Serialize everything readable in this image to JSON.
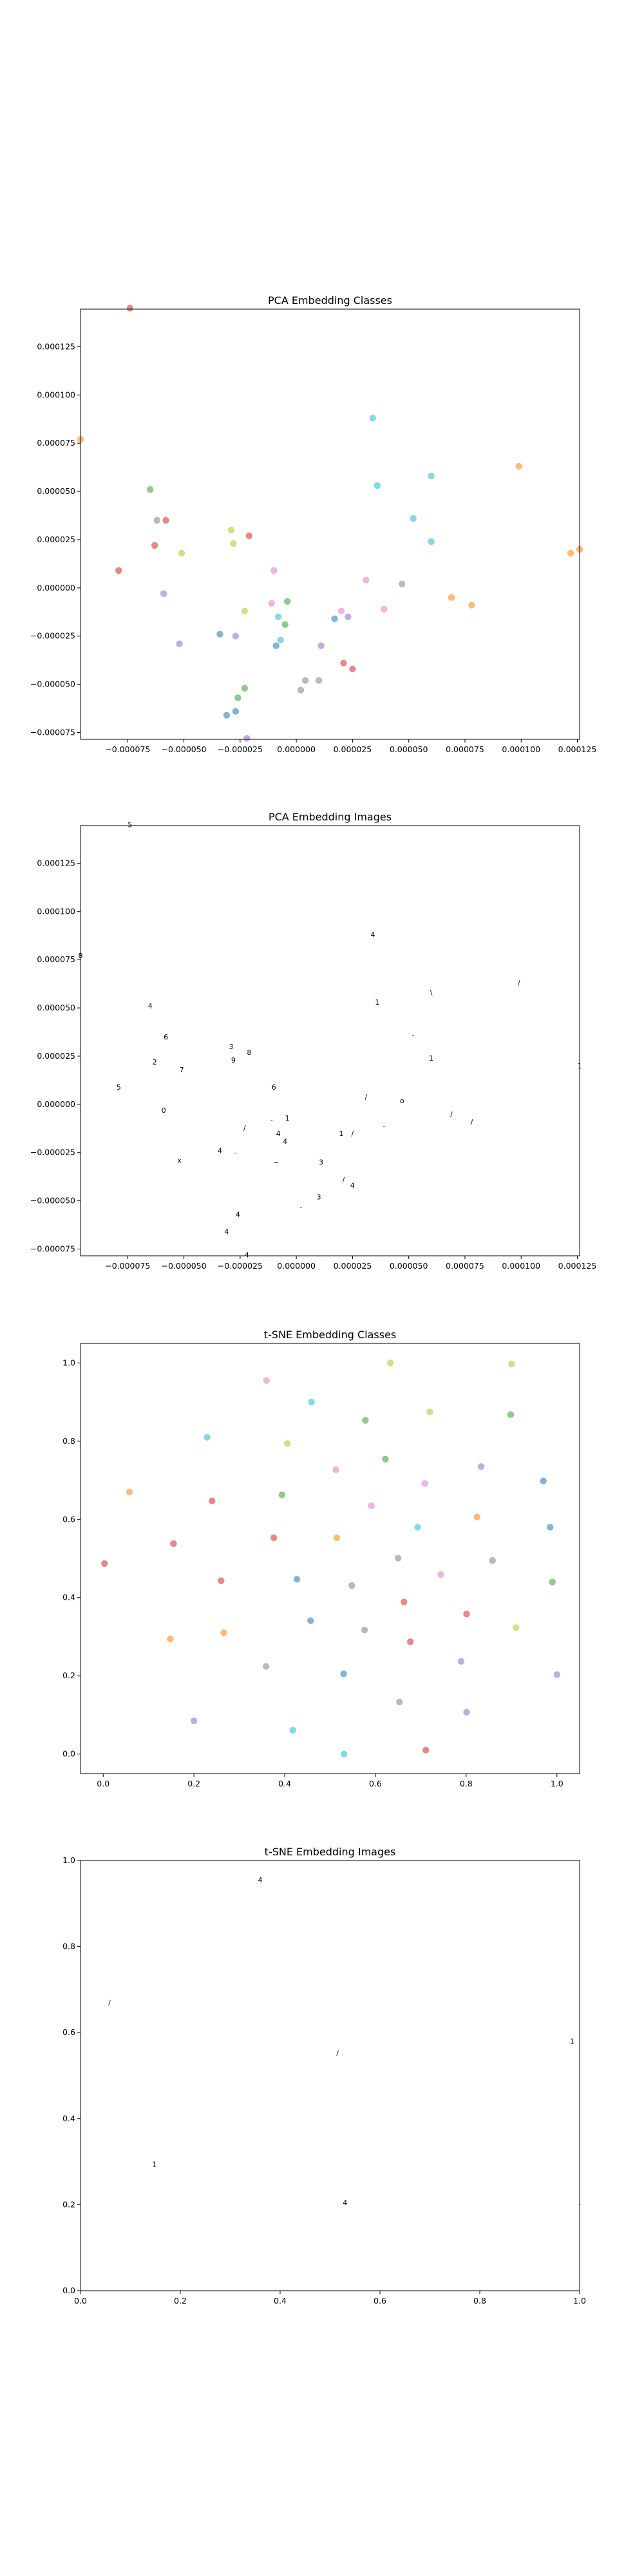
{
  "figure": {
    "panels": [
      {
        "title": "PCA Embedding Classes"
      },
      {
        "title": "PCA Embedding Images"
      },
      {
        "title": "t-SNE Embedding Classes"
      },
      {
        "title": "t-SNE Embedding Images"
      }
    ]
  },
  "chart_data": [
    {
      "type": "scatter",
      "title": "PCA Embedding Classes",
      "xlabel": "",
      "ylabel": "",
      "xlim": [
        -9.6e-05,
        0.000126
      ],
      "ylim": [
        -7.85e-05,
        0.0001445
      ],
      "xticks": [
        -7.5e-05,
        -5e-05,
        -2.5e-05,
        0.0,
        2.5e-05,
        5e-05,
        7.5e-05,
        0.0001,
        0.000125
      ],
      "xticklabels": [
        "−0.000075",
        "−0.000050",
        "−0.000025",
        "0.000000",
        "0.000025",
        "0.000050",
        "0.000075",
        "0.000100",
        "0.000125"
      ],
      "yticks": [
        -7.5e-05,
        -5e-05,
        -2.5e-05,
        0.0,
        2.5e-05,
        5e-05,
        7.5e-05,
        0.0001,
        0.000125
      ],
      "yticklabels": [
        "−0.000075",
        "−0.000050",
        "−0.000025",
        "0.000000",
        "0.000025",
        "0.000050",
        "0.000075",
        "0.000100",
        "0.000125"
      ],
      "grid": false,
      "points": [
        {
          "x": -7.4e-05,
          "y": 0.000145,
          "color": "#d62728"
        },
        {
          "x": -9.6e-05,
          "y": 7.7e-05,
          "color": "#ff7f0e"
        },
        {
          "x": 3.4e-05,
          "y": 8.8e-05,
          "color": "#17becf"
        },
        {
          "x": 3.6e-05,
          "y": 5.3e-05,
          "color": "#17becf"
        },
        {
          "x": 6e-05,
          "y": 5.8e-05,
          "color": "#17becf"
        },
        {
          "x": 9.9e-05,
          "y": 6.3e-05,
          "color": "#ff7f0e"
        },
        {
          "x": -6.5e-05,
          "y": 5.1e-05,
          "color": "#2ca02c"
        },
        {
          "x": -6.2e-05,
          "y": 3.5e-05,
          "color": "#7f7f7f"
        },
        {
          "x": -5.8e-05,
          "y": 3.5e-05,
          "color": "#d62728"
        },
        {
          "x": -6.3e-05,
          "y": 2.2e-05,
          "color": "#d62728"
        },
        {
          "x": -5.1e-05,
          "y": 1.8e-05,
          "color": "#bcbd22"
        },
        {
          "x": -2.9e-05,
          "y": 3e-05,
          "color": "#bcbd22"
        },
        {
          "x": -2.8e-05,
          "y": 2.3e-05,
          "color": "#bcbd22"
        },
        {
          "x": -2.1e-05,
          "y": 2.7e-05,
          "color": "#d62728"
        },
        {
          "x": 5.2e-05,
          "y": 3.6e-05,
          "color": "#17becf"
        },
        {
          "x": 6e-05,
          "y": 2.4e-05,
          "color": "#17becf"
        },
        {
          "x": 0.000122,
          "y": 1.8e-05,
          "color": "#ff7f0e"
        },
        {
          "x": 0.000126,
          "y": 2e-05,
          "color": "#ff7f0e"
        },
        {
          "x": -7.9e-05,
          "y": 9e-06,
          "color": "#d62728"
        },
        {
          "x": -1e-05,
          "y": 9e-06,
          "color": "#e377c2"
        },
        {
          "x": 3.1e-05,
          "y": 4e-06,
          "color": "#e377c2"
        },
        {
          "x": 4.7e-05,
          "y": 2e-06,
          "color": "#7f7f7f"
        },
        {
          "x": -5.9e-05,
          "y": -3e-06,
          "color": "#9467bd"
        },
        {
          "x": 6.9e-05,
          "y": -5e-06,
          "color": "#ff7f0e"
        },
        {
          "x": 7.8e-05,
          "y": -9e-06,
          "color": "#ff7f0e"
        },
        {
          "x": -2.3e-05,
          "y": -1.2e-05,
          "color": "#bcbd22"
        },
        {
          "x": -1.1e-05,
          "y": -8e-06,
          "color": "#e377c2"
        },
        {
          "x": -4e-06,
          "y": -7e-06,
          "color": "#2ca02c"
        },
        {
          "x": -8e-06,
          "y": -1.5e-05,
          "color": "#17becf"
        },
        {
          "x": -5e-06,
          "y": -1.9e-05,
          "color": "#2ca02c"
        },
        {
          "x": 2e-05,
          "y": -1.2e-05,
          "color": "#e377c2"
        },
        {
          "x": 2.3e-05,
          "y": -1.5e-05,
          "color": "#9467bd"
        },
        {
          "x": 1.7e-05,
          "y": -1.6e-05,
          "color": "#1f77b4"
        },
        {
          "x": 3.9e-05,
          "y": -1.1e-05,
          "color": "#e377c2"
        },
        {
          "x": -3.4e-05,
          "y": -2.4e-05,
          "color": "#1f77b4"
        },
        {
          "x": -2.7e-05,
          "y": -2.5e-05,
          "color": "#9467bd"
        },
        {
          "x": -9e-06,
          "y": -3e-05,
          "color": "#1f77b4"
        },
        {
          "x": -7e-06,
          "y": -2.7e-05,
          "color": "#17becf"
        },
        {
          "x": 1.1e-05,
          "y": -3e-05,
          "color": "#9467bd"
        },
        {
          "x": -5.2e-05,
          "y": -2.9e-05,
          "color": "#9467bd"
        },
        {
          "x": 2.1e-05,
          "y": -3.9e-05,
          "color": "#d62728"
        },
        {
          "x": 2.5e-05,
          "y": -4.2e-05,
          "color": "#d62728"
        },
        {
          "x": 4e-06,
          "y": -4.8e-05,
          "color": "#7f7f7f"
        },
        {
          "x": 1e-05,
          "y": -4.8e-05,
          "color": "#7f7f7f"
        },
        {
          "x": 2e-06,
          "y": -5.3e-05,
          "color": "#7f7f7f"
        },
        {
          "x": -2.3e-05,
          "y": -5.2e-05,
          "color": "#2ca02c"
        },
        {
          "x": -2.6e-05,
          "y": -5.7e-05,
          "color": "#2ca02c"
        },
        {
          "x": -2.7e-05,
          "y": -6.4e-05,
          "color": "#1f77b4"
        },
        {
          "x": -3.1e-05,
          "y": -6.6e-05,
          "color": "#1f77b4"
        },
        {
          "x": -2.2e-05,
          "y": -7.8e-05,
          "color": "#9467bd"
        }
      ]
    },
    {
      "type": "scatter",
      "title": "PCA Embedding Images",
      "xlabel": "",
      "ylabel": "",
      "xlim": [
        -9.6e-05,
        0.000126
      ],
      "ylim": [
        -7.85e-05,
        0.0001445
      ],
      "xticks": [
        -7.5e-05,
        -5e-05,
        -2.5e-05,
        0.0,
        2.5e-05,
        5e-05,
        7.5e-05,
        0.0001,
        0.000125
      ],
      "xticklabels": [
        "−0.000075",
        "−0.000050",
        "−0.000025",
        "0.000000",
        "0.000025",
        "0.000050",
        "0.000075",
        "0.000100",
        "0.000125"
      ],
      "yticks": [
        -7.5e-05,
        -5e-05,
        -2.5e-05,
        0.0,
        2.5e-05,
        5e-05,
        7.5e-05,
        0.0001,
        0.000125
      ],
      "yticklabels": [
        "−0.000075",
        "−0.000050",
        "−0.000025",
        "0.000000",
        "0.000025",
        "0.000050",
        "0.000075",
        "0.000100",
        "0.000125"
      ],
      "grid": false,
      "marker": "image",
      "points": [
        {
          "x": -7.4e-05,
          "y": 0.000145,
          "glyph": "5"
        },
        {
          "x": -9.6e-05,
          "y": 7.7e-05,
          "glyph": "8"
        },
        {
          "x": 3.4e-05,
          "y": 8.8e-05,
          "glyph": "4"
        },
        {
          "x": 3.6e-05,
          "y": 5.3e-05,
          "glyph": "1"
        },
        {
          "x": 6e-05,
          "y": 5.8e-05,
          "glyph": "\\"
        },
        {
          "x": 9.9e-05,
          "y": 6.3e-05,
          "glyph": "/"
        },
        {
          "x": -6.5e-05,
          "y": 5.1e-05,
          "glyph": "4"
        },
        {
          "x": -5.8e-05,
          "y": 3.5e-05,
          "glyph": "6"
        },
        {
          "x": -6.3e-05,
          "y": 2.2e-05,
          "glyph": "2"
        },
        {
          "x": -5.1e-05,
          "y": 1.8e-05,
          "glyph": "7"
        },
        {
          "x": -2.9e-05,
          "y": 3e-05,
          "glyph": "3"
        },
        {
          "x": -2.8e-05,
          "y": 2.3e-05,
          "glyph": "9"
        },
        {
          "x": -2.1e-05,
          "y": 2.7e-05,
          "glyph": "8"
        },
        {
          "x": 5.2e-05,
          "y": 3.6e-05,
          "glyph": "-"
        },
        {
          "x": 6e-05,
          "y": 2.4e-05,
          "glyph": "1"
        },
        {
          "x": 0.000126,
          "y": 2e-05,
          "glyph": "1"
        },
        {
          "x": -7.9e-05,
          "y": 9e-06,
          "glyph": "5"
        },
        {
          "x": -1e-05,
          "y": 9e-06,
          "glyph": "6"
        },
        {
          "x": 3.1e-05,
          "y": 4e-06,
          "glyph": "/"
        },
        {
          "x": 4.7e-05,
          "y": 2e-06,
          "glyph": "o"
        },
        {
          "x": -5.9e-05,
          "y": -3e-06,
          "glyph": "0"
        },
        {
          "x": 6.9e-05,
          "y": -5e-06,
          "glyph": "/"
        },
        {
          "x": 7.8e-05,
          "y": -9e-06,
          "glyph": "/"
        },
        {
          "x": -2.3e-05,
          "y": -1.2e-05,
          "glyph": "/"
        },
        {
          "x": -1.1e-05,
          "y": -8e-06,
          "glyph": "-"
        },
        {
          "x": -4e-06,
          "y": -7e-06,
          "glyph": "1"
        },
        {
          "x": -8e-06,
          "y": -1.5e-05,
          "glyph": "4"
        },
        {
          "x": -5e-06,
          "y": -1.9e-05,
          "glyph": "4"
        },
        {
          "x": 2e-05,
          "y": -1.5e-05,
          "glyph": "1"
        },
        {
          "x": 2.5e-05,
          "y": -1.5e-05,
          "glyph": "/"
        },
        {
          "x": 3.9e-05,
          "y": -1.1e-05,
          "glyph": "-"
        },
        {
          "x": -3.4e-05,
          "y": -2.4e-05,
          "glyph": "4"
        },
        {
          "x": -2.7e-05,
          "y": -2.5e-05,
          "glyph": "-"
        },
        {
          "x": -9e-06,
          "y": -3e-05,
          "glyph": "~"
        },
        {
          "x": 1.1e-05,
          "y": -3e-05,
          "glyph": "3"
        },
        {
          "x": -5.2e-05,
          "y": -2.9e-05,
          "glyph": "x"
        },
        {
          "x": 2.1e-05,
          "y": -3.9e-05,
          "glyph": "/"
        },
        {
          "x": 2.5e-05,
          "y": -4.2e-05,
          "glyph": "4"
        },
        {
          "x": 1e-05,
          "y": -4.8e-05,
          "glyph": "3"
        },
        {
          "x": 2e-06,
          "y": -5.3e-05,
          "glyph": "-"
        },
        {
          "x": -2.6e-05,
          "y": -5.7e-05,
          "glyph": "4"
        },
        {
          "x": -3.1e-05,
          "y": -6.6e-05,
          "glyph": "4"
        },
        {
          "x": -2.2e-05,
          "y": -7.8e-05,
          "glyph": "4"
        }
      ]
    },
    {
      "type": "scatter",
      "title": "t-SNE Embedding Classes",
      "xlabel": "",
      "ylabel": "",
      "xlim": [
        -0.05,
        1.05
      ],
      "ylim": [
        -0.05,
        1.05
      ],
      "xticks": [
        0.0,
        0.2,
        0.4,
        0.6,
        0.8,
        1.0
      ],
      "xticklabels": [
        "0.0",
        "0.2",
        "0.4",
        "0.6",
        "0.8",
        "1.0"
      ],
      "yticks": [
        0.0,
        0.2,
        0.4,
        0.6,
        0.8,
        1.0
      ],
      "yticklabels": [
        "0.0",
        "0.2",
        "0.4",
        "0.6",
        "0.8",
        "1.0"
      ],
      "grid": false,
      "points": [
        {
          "x": 0.633,
          "y": 1.0,
          "color": "#bcbd22"
        },
        {
          "x": 0.9,
          "y": 0.997,
          "color": "#bcbd22"
        },
        {
          "x": 0.36,
          "y": 0.955,
          "color": "#e377c2"
        },
        {
          "x": 0.459,
          "y": 0.9,
          "color": "#17becf"
        },
        {
          "x": 0.578,
          "y": 0.853,
          "color": "#2ca02c"
        },
        {
          "x": 0.72,
          "y": 0.875,
          "color": "#bcbd22"
        },
        {
          "x": 0.898,
          "y": 0.868,
          "color": "#2ca02c"
        },
        {
          "x": 0.229,
          "y": 0.81,
          "color": "#17becf"
        },
        {
          "x": 0.406,
          "y": 0.794,
          "color": "#bcbd22"
        },
        {
          "x": 0.622,
          "y": 0.754,
          "color": "#2ca02c"
        },
        {
          "x": 0.833,
          "y": 0.735,
          "color": "#9467bd"
        },
        {
          "x": 0.513,
          "y": 0.727,
          "color": "#e377c2"
        },
        {
          "x": 0.97,
          "y": 0.698,
          "color": "#1f77b4"
        },
        {
          "x": 0.709,
          "y": 0.692,
          "color": "#e377c2"
        },
        {
          "x": 0.058,
          "y": 0.67,
          "color": "#ff7f0e"
        },
        {
          "x": 0.394,
          "y": 0.663,
          "color": "#2ca02c"
        },
        {
          "x": 0.24,
          "y": 0.647,
          "color": "#d62728"
        },
        {
          "x": 0.591,
          "y": 0.635,
          "color": "#e377c2"
        },
        {
          "x": 0.824,
          "y": 0.606,
          "color": "#ff7f0e"
        },
        {
          "x": 0.693,
          "y": 0.58,
          "color": "#17becf"
        },
        {
          "x": 0.985,
          "y": 0.58,
          "color": "#1f77b4"
        },
        {
          "x": 0.376,
          "y": 0.553,
          "color": "#d62728"
        },
        {
          "x": 0.515,
          "y": 0.553,
          "color": "#ff7f0e"
        },
        {
          "x": 0.155,
          "y": 0.538,
          "color": "#d62728"
        },
        {
          "x": 0.65,
          "y": 0.501,
          "color": "#7f7f7f"
        },
        {
          "x": 0.858,
          "y": 0.495,
          "color": "#7f7f7f"
        },
        {
          "x": 0.003,
          "y": 0.487,
          "color": "#d62728"
        },
        {
          "x": 0.744,
          "y": 0.459,
          "color": "#e377c2"
        },
        {
          "x": 0.26,
          "y": 0.443,
          "color": "#d62728"
        },
        {
          "x": 0.427,
          "y": 0.447,
          "color": "#1f77b4"
        },
        {
          "x": 0.99,
          "y": 0.44,
          "color": "#2ca02c"
        },
        {
          "x": 0.548,
          "y": 0.431,
          "color": "#7f7f7f"
        },
        {
          "x": 0.663,
          "y": 0.389,
          "color": "#d62728"
        },
        {
          "x": 0.801,
          "y": 0.358,
          "color": "#d62728"
        },
        {
          "x": 0.457,
          "y": 0.341,
          "color": "#1f77b4"
        },
        {
          "x": 0.91,
          "y": 0.323,
          "color": "#bcbd22"
        },
        {
          "x": 0.576,
          "y": 0.317,
          "color": "#7f7f7f"
        },
        {
          "x": 0.266,
          "y": 0.31,
          "color": "#ff7f0e"
        },
        {
          "x": 0.148,
          "y": 0.294,
          "color": "#ff7f0e"
        },
        {
          "x": 0.677,
          "y": 0.287,
          "color": "#d62728"
        },
        {
          "x": 0.789,
          "y": 0.237,
          "color": "#9467bd"
        },
        {
          "x": 0.359,
          "y": 0.224,
          "color": "#7f7f7f"
        },
        {
          "x": 0.53,
          "y": 0.205,
          "color": "#1f77b4"
        },
        {
          "x": 1.0,
          "y": 0.203,
          "color": "#9467bd"
        },
        {
          "x": 0.653,
          "y": 0.133,
          "color": "#7f7f7f"
        },
        {
          "x": 0.801,
          "y": 0.107,
          "color": "#9467bd"
        },
        {
          "x": 0.2,
          "y": 0.085,
          "color": "#9467bd"
        },
        {
          "x": 0.418,
          "y": 0.061,
          "color": "#17becf"
        },
        {
          "x": 0.711,
          "y": 0.01,
          "color": "#d62728"
        },
        {
          "x": 0.531,
          "y": 0.0,
          "color": "#17becf"
        }
      ]
    },
    {
      "type": "scatter",
      "title": "t-SNE Embedding Images",
      "xlabel": "",
      "ylabel": "",
      "xlim": [
        0.0,
        1.0
      ],
      "ylim": [
        0.0,
        1.0
      ],
      "xticks": [
        0.0,
        0.2,
        0.4,
        0.6,
        0.8,
        1.0
      ],
      "xticklabels": [
        "0.0",
        "0.2",
        "0.4",
        "0.6",
        "0.8",
        "1.0"
      ],
      "yticks": [
        0.0,
        0.2,
        0.4,
        0.6,
        0.8,
        1.0
      ],
      "yticklabels": [
        "0.0",
        "0.2",
        "0.4",
        "0.6",
        "0.8",
        "1.0"
      ],
      "grid": false,
      "marker": "image",
      "points": [
        {
          "x": 0.36,
          "y": 0.955,
          "glyph": "4"
        },
        {
          "x": 0.058,
          "y": 0.67,
          "glyph": "/"
        },
        {
          "x": 0.515,
          "y": 0.553,
          "glyph": "/"
        },
        {
          "x": 0.985,
          "y": 0.58,
          "glyph": "1"
        },
        {
          "x": 0.148,
          "y": 0.294,
          "glyph": "1"
        },
        {
          "x": 0.53,
          "y": 0.205,
          "glyph": "4"
        },
        {
          "x": 1.0,
          "y": 0.203,
          "glyph": "-"
        }
      ]
    }
  ]
}
